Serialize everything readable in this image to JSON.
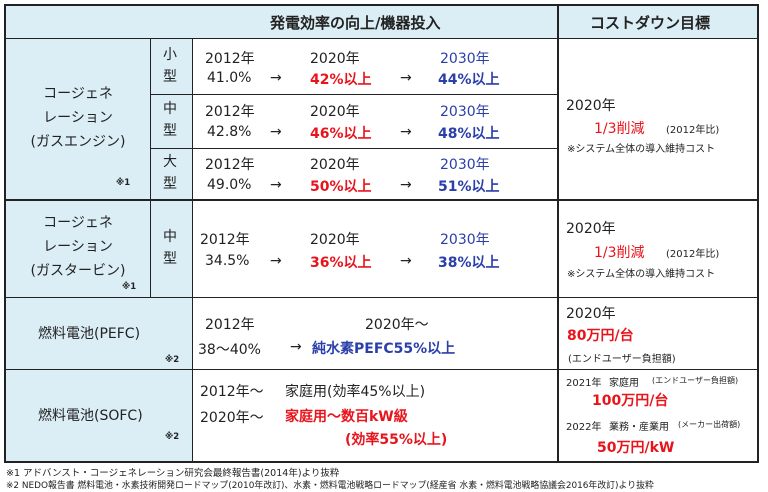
{
  "header": {
    "efficiency": "発電効率の向上/機器投入",
    "cost": "コストダウン目標"
  },
  "colors": {
    "band": "#dbeef5",
    "red": "#e8141c",
    "blue": "#2a3faa",
    "border": "#222222"
  },
  "gas_engine": {
    "category": [
      "コージェネ",
      "レーション",
      "(ガスエンジン)"
    ],
    "note": "※1",
    "rows": [
      {
        "size": [
          "小",
          "型"
        ],
        "y2012": "2012年",
        "y2020": "2020年",
        "y2030": "2030年",
        "v2012": "41.0%",
        "arrow1": "→",
        "v2020": "42%以上",
        "arrow2": "→",
        "v2030": "44%以上"
      },
      {
        "size": [
          "中",
          "型"
        ],
        "y2012": "2012年",
        "y2020": "2020年",
        "y2030": "2030年",
        "v2012": "42.8%",
        "arrow1": "→",
        "v2020": "46%以上",
        "arrow2": "→",
        "v2030": "48%以上"
      },
      {
        "size": [
          "大",
          "型"
        ],
        "y2012": "2012年",
        "y2020": "2020年",
        "y2030": "2030年",
        "v2012": "49.0%",
        "arrow1": "→",
        "v2020": "50%以上",
        "arrow2": "→",
        "v2030": "51%以上"
      }
    ],
    "cost": {
      "year": "2020年",
      "target": "1/3削減",
      "basis": "(2012年比)",
      "remark": "※システム全体の導入維持コスト"
    }
  },
  "gas_turbine": {
    "category": [
      "コージェネ",
      "レーション",
      "(ガスタービン)"
    ],
    "note": "※1",
    "row": {
      "size": [
        "中",
        "型"
      ],
      "y2012": "2012年",
      "y2020": "2020年",
      "y2030": "2030年",
      "v2012": "34.5%",
      "arrow1": "→",
      "v2020": "36%以上",
      "arrow2": "→",
      "v2030": "38%以上"
    },
    "cost": {
      "year": "2020年",
      "target": "1/3削減",
      "basis": "(2012年比)",
      "remark": "※システム全体の導入維持コスト"
    }
  },
  "pefc": {
    "category": "燃料電池(PEFC)",
    "note": "※2",
    "y2012": "2012年",
    "y2020": "2020年～",
    "v2012": "38～40%",
    "arrow": "→",
    "v2020": "純水素PEFC55%以上",
    "cost": {
      "year": "2020年",
      "target": "80万円/台",
      "remark": "(エンドユーザー負担額)"
    }
  },
  "sofc": {
    "category": "燃料電池(SOFC)",
    "note": "※2",
    "line1_year": "2012年～",
    "line1_text": "家庭用(効率45%以上)",
    "line2_year": "2020年～",
    "line2_text": "家庭用～数百kW級",
    "line3_text": "(効率55%以上)",
    "cost": {
      "line1_year": "2021年",
      "line1_label": "家庭用",
      "line1_note": "(エンドユーザー負担額)",
      "line1_value": "100万円/台",
      "line2_year": "2022年",
      "line2_label": "業務・産業用",
      "line2_note": "(メーカー出荷額)",
      "line2_value": "50万円/kW"
    }
  },
  "footnotes": [
    "※1 アドバンスト・コージェネレーション研究会最終報告書(2014年)より抜粋",
    "※2 NEDO報告書 燃料電池・水素技術開発ロードマップ(2010年改訂)、水素・燃料電池戦略ロードマップ(経産省 水素・燃料電池戦略協議会2016年改訂)より抜粋"
  ]
}
